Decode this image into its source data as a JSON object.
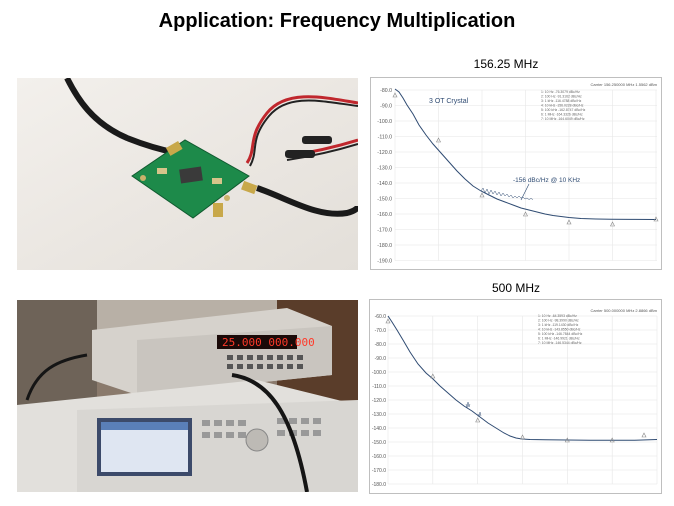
{
  "slide": {
    "title": "Application: Frequency Multiplication"
  },
  "top": {
    "caption": "156.25 MHz",
    "plot_header": "Carrier 156.250000 MHz     1.5562 dBm",
    "annotation_crystal": "3 OT Crystal",
    "annotation_noise": "-156 dBc/Hz @ 10 KHz",
    "yticks": [
      "-80.0",
      "-90.0",
      "-100.0",
      "-110.0",
      "-120.0",
      "-130.0",
      "-140.0",
      "-150.0",
      "-160.0",
      "-170.0",
      "-180.0",
      "-190.0"
    ],
    "marker_legend": [
      "1: 10 Hz   -76.3079 dBc/Hz",
      "2: 100 Hz  -91.3162 dBc/Hz",
      "3: 1 kHz   -116.4788 dBc/Hz",
      "4: 10 kHz  -156.0228 dBc/Hz",
      "5: 100 kHz -162.8747 dBc/Hz",
      "6: 1 MHz   -164.3326 dBc/Hz",
      "7: 10 MHz  -164.6049 dBc/Hz"
    ]
  },
  "bottom": {
    "caption": "500 MHz",
    "plot_header": "Carrier 500.000000 MHz     2.8866 dBm",
    "yticks": [
      "-60.0",
      "-70.0",
      "-80.0",
      "-90.0",
      "-100.0",
      "-110.0",
      "-120.0",
      "-130.0",
      "-140.0",
      "-150.0",
      "-160.0",
      "-170.0",
      "-180.0"
    ],
    "marker_legend": [
      "1: 10 Hz   -64.3593 dBc/Hz",
      "2: 100 Hz  -98.3990 dBc/Hz",
      "3: 1 kHz   -119.1430 dBc/Hz",
      "4: 10 kHz  -143.8550 dBc/Hz",
      "5: 100 kHz -146.7844 dBc/Hz",
      "6: 1 MHz   -146.9921 dBc/Hz",
      "7: 10 MHz  -146.5344 dBc/Hz"
    ]
  },
  "instrument": {
    "frequency_display": "25.000 000.000"
  },
  "colors": {
    "trace": "#2f4b72",
    "grid": "#e6e6e6",
    "pcb": "#1d8a4a",
    "cable_red": "#c0272d"
  }
}
